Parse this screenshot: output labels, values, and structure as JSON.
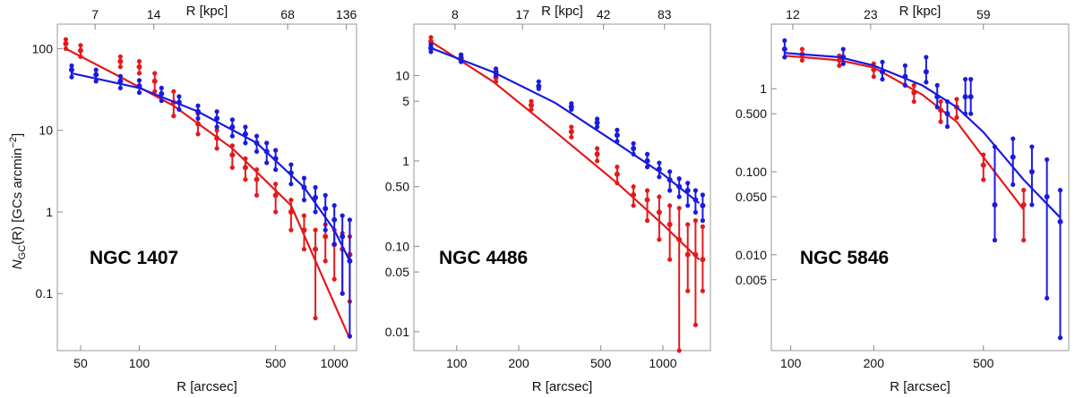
{
  "figure": {
    "ylabel_main": "N",
    "ylabel_sub": "GC",
    "ylabel_rest": "(R) [GCs arcmin",
    "ylabel_sup": "−2",
    "ylabel_end": "]"
  },
  "colors": {
    "red": "#e31a1c",
    "blue": "#1a1ae0"
  },
  "chart_data": [
    {
      "type": "scatter",
      "title": "NGC 1407",
      "xlabel": "R [arcsec]",
      "top_xlabel": "R [kpc]",
      "ylabel": "N_GC(R) [GCs arcmin^-2]",
      "xscale": "log",
      "yscale": "log",
      "xlim": [
        38,
        1300
      ],
      "ylim": [
        0.02,
        200
      ],
      "xticks": [
        50,
        100,
        500,
        1000
      ],
      "xtick_labels": [
        "50",
        "100",
        "500",
        "1000"
      ],
      "yticks": [
        0.1,
        1,
        10,
        100
      ],
      "ytick_labels": [
        "0.1",
        "1",
        "10",
        "100"
      ],
      "top_ticks": [
        7,
        14,
        68,
        136
      ],
      "top_tick_labels": [
        "7",
        "14",
        "68",
        "136"
      ],
      "kpc_per_arcsec": 0.118,
      "series": [
        {
          "name": "red",
          "color": "#e31a1c",
          "fit": [
            [
              42,
              100
            ],
            [
              80,
              45
            ],
            [
              150,
              20
            ],
            [
              300,
              6
            ],
            [
              600,
              1.2
            ],
            [
              1200,
              0.028
            ]
          ],
          "x": [
            42,
            50,
            80,
            100,
            120,
            150,
            200,
            250,
            300,
            350,
            400,
            500,
            600,
            700,
            800,
            900,
            1000,
            1100,
            1200
          ],
          "y": [
            115,
            95,
            70,
            60,
            40,
            22,
            12,
            8,
            5,
            3.5,
            2.5,
            1.6,
            1,
            0.6,
            0.35,
            0.5,
            0.4,
            0.35,
            0.3
          ],
          "lo": [
            100,
            80,
            60,
            50,
            30,
            15,
            9,
            6,
            3.5,
            2.5,
            1.6,
            1,
            0.6,
            0.35,
            0.05,
            0.25,
            0.15,
            0.1,
            0.08
          ],
          "hi": [
            130,
            110,
            80,
            70,
            50,
            30,
            16,
            10,
            6.5,
            4.5,
            3.3,
            2.2,
            1.4,
            0.9,
            0.6,
            0.7,
            0.6,
            0.55,
            0.5
          ]
        },
        {
          "name": "blue",
          "color": "#1a1ae0",
          "fit": [
            [
              45,
              50
            ],
            [
              100,
              33
            ],
            [
              200,
              17
            ],
            [
              400,
              7
            ],
            [
              700,
              2
            ],
            [
              1000,
              0.6
            ],
            [
              1200,
              0.25
            ]
          ],
          "x": [
            45,
            60,
            80,
            100,
            130,
            160,
            200,
            250,
            300,
            350,
            400,
            450,
            500,
            600,
            700,
            800,
            900,
            1000,
            1100,
            1200
          ],
          "y": [
            55,
            48,
            40,
            35,
            28,
            22,
            17,
            14,
            11,
            9,
            7,
            5.5,
            4.5,
            3,
            2,
            1.5,
            1.1,
            0.8,
            0.5,
            0.25
          ],
          "lo": [
            45,
            40,
            33,
            29,
            23,
            18,
            14,
            11,
            8.5,
            7,
            5.5,
            4,
            3.3,
            2.2,
            1.4,
            1,
            0.6,
            0.4,
            0.1,
            0.03
          ],
          "hi": [
            62,
            55,
            46,
            41,
            33,
            26,
            20,
            17,
            13.5,
            11,
            8.5,
            7,
            5.7,
            3.8,
            2.6,
            2,
            1.6,
            1.2,
            0.9,
            0.8
          ]
        }
      ]
    },
    {
      "type": "scatter",
      "title": "NGC 4486",
      "xlabel": "R [arcsec]",
      "top_xlabel": "R [kpc]",
      "ylabel": "",
      "xscale": "log",
      "yscale": "log",
      "xlim": [
        62,
        1700
      ],
      "ylim": [
        0.006,
        40
      ],
      "xticks": [
        100,
        200,
        500,
        1000
      ],
      "xtick_labels": [
        "100",
        "200",
        "500",
        "1000"
      ],
      "yticks": [
        0.01,
        0.05,
        0.1,
        0.5,
        1,
        5,
        10
      ],
      "ytick_labels": [
        "0.01",
        "0.05",
        "0.10",
        "0.50",
        "1",
        "5",
        "10"
      ],
      "top_ticks": [
        8,
        17,
        42,
        83
      ],
      "top_tick_labels": [
        "8",
        "17",
        "42",
        "83"
      ],
      "kpc_per_arcsec": 0.0815,
      "series": [
        {
          "name": "red",
          "color": "#e31a1c",
          "fit": [
            [
              75,
              25
            ],
            [
              150,
              8.5
            ],
            [
              300,
              2.2
            ],
            [
              600,
              0.55
            ],
            [
              1000,
              0.18
            ],
            [
              1500,
              0.07
            ]
          ],
          "x": [
            75,
            105,
            155,
            230,
            360,
            480,
            600,
            720,
            840,
            960,
            1080,
            1200,
            1320,
            1440,
            1560
          ],
          "y": [
            25,
            16,
            9.5,
            4.5,
            2.2,
            1.2,
            0.7,
            0.4,
            0.35,
            0.25,
            0.18,
            0.12,
            0.08,
            0.08,
            0.07
          ],
          "lo": [
            23,
            14.5,
            8.5,
            4,
            1.9,
            1,
            0.55,
            0.3,
            0.2,
            0.12,
            0.07,
            0.006,
            0.03,
            0.012,
            0.03
          ],
          "hi": [
            28,
            17.5,
            10.5,
            5,
            2.5,
            1.4,
            0.85,
            0.5,
            0.45,
            0.38,
            0.3,
            0.28,
            0.18,
            0.2,
            0.17
          ]
        },
        {
          "name": "blue",
          "color": "#1a1ae0",
          "fit": [
            [
              75,
              21
            ],
            [
              150,
              11
            ],
            [
              300,
              4.8
            ],
            [
              600,
              1.6
            ],
            [
              1000,
              0.7
            ],
            [
              1500,
              0.32
            ]
          ],
          "x": [
            75,
            105,
            155,
            250,
            360,
            480,
            600,
            720,
            840,
            960,
            1080,
            1200,
            1320,
            1440,
            1560
          ],
          "y": [
            21,
            16,
            11,
            7.5,
            4.3,
            2.8,
            2,
            1.4,
            1,
            0.8,
            0.6,
            0.5,
            0.45,
            0.35,
            0.3
          ],
          "lo": [
            19,
            14.5,
            10,
            7,
            4,
            2.5,
            1.7,
            1.2,
            0.85,
            0.65,
            0.45,
            0.38,
            0.3,
            0.25,
            0.2
          ],
          "hi": [
            23,
            17.5,
            12,
            8.5,
            4.7,
            3.1,
            2.3,
            1.6,
            1.2,
            0.95,
            0.75,
            0.62,
            0.55,
            0.45,
            0.4
          ]
        }
      ]
    },
    {
      "type": "scatter",
      "title": "NGC 5846",
      "xlabel": "R [arcsec]",
      "top_xlabel": "R [kpc]",
      "ylabel": "",
      "xscale": "log",
      "yscale": "log",
      "xlim": [
        85,
        1020
      ],
      "ylim": [
        0.0007,
        6
      ],
      "xticks": [
        100,
        200,
        500
      ],
      "xtick_labels": [
        "100",
        "200",
        "500"
      ],
      "yticks": [
        0.005,
        0.01,
        0.05,
        0.1,
        0.5,
        1
      ],
      "ytick_labels": [
        "0.005",
        "0.010",
        "0.050",
        "0.100",
        "0.500",
        "1"
      ],
      "top_ticks": [
        12,
        23,
        59
      ],
      "top_tick_labels": [
        "12",
        "23",
        "59"
      ],
      "kpc_per_arcsec": 0.118,
      "series": [
        {
          "name": "red",
          "color": "#e31a1c",
          "fit": [
            [
              95,
              2.5
            ],
            [
              150,
              2.2
            ],
            [
              200,
              1.8
            ],
            [
              300,
              0.85
            ],
            [
              400,
              0.4
            ],
            [
              500,
              0.15
            ],
            [
              700,
              0.035
            ]
          ],
          "x": [
            110,
            150,
            200,
            280,
            350,
            400,
            500,
            700
          ],
          "y": [
            2.6,
            2.2,
            1.7,
            0.9,
            0.55,
            0.6,
            0.12,
            0.04
          ],
          "lo": [
            2.2,
            1.9,
            1.4,
            0.7,
            0.4,
            0.45,
            0.08,
            0.015
          ],
          "hi": [
            3,
            2.5,
            2,
            1.1,
            0.7,
            0.75,
            0.16,
            0.06
          ]
        },
        {
          "name": "blue",
          "color": "#1a1ae0",
          "fit": [
            [
              95,
              2.7
            ],
            [
              150,
              2.4
            ],
            [
              200,
              1.9
            ],
            [
              300,
              1.1
            ],
            [
              400,
              0.6
            ],
            [
              500,
              0.3
            ],
            [
              700,
              0.08
            ],
            [
              950,
              0.028
            ]
          ],
          "x": [
            95,
            155,
            215,
            260,
            310,
            340,
            370,
            430,
            450,
            550,
            640,
            750,
            850,
            950
          ],
          "y": [
            3,
            2.4,
            1.6,
            1.4,
            1.6,
            0.8,
            0.5,
            0.8,
            0.8,
            0.04,
            0.15,
            0.1,
            0.05,
            0.025
          ],
          "lo": [
            2.4,
            2,
            1.3,
            1.1,
            1.2,
            0.6,
            0.35,
            0.5,
            0.5,
            0.015,
            0.07,
            0.04,
            0.003,
            0.001
          ],
          "hi": [
            3.8,
            3,
            2.1,
            1.9,
            2.4,
            1.1,
            0.7,
            1.3,
            1.3,
            0.2,
            0.25,
            0.2,
            0.14,
            0.06
          ]
        }
      ]
    }
  ]
}
